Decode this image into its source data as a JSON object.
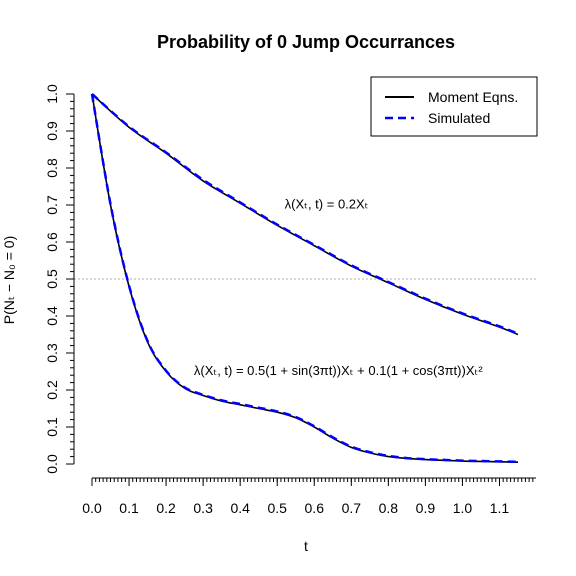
{
  "chart_data": {
    "type": "line",
    "title": "Probability of 0 Jump Occurrances",
    "xlabel": "t",
    "ylabel": "P(Nₜ − N₀ = 0)",
    "xlim": [
      0,
      1.15
    ],
    "ylim": [
      0,
      1.0
    ],
    "x_ticks": [
      "0.0",
      "0.1",
      "0.2",
      "0.3",
      "0.4",
      "0.5",
      "0.6",
      "0.7",
      "0.8",
      "0.9",
      "1.0",
      "1.1"
    ],
    "y_ticks": [
      "0.0",
      "0.1",
      "0.2",
      "0.3",
      "0.4",
      "0.5",
      "0.6",
      "0.7",
      "0.8",
      "0.9",
      "1.0"
    ],
    "reference_line": {
      "y": 0.5,
      "style": "dotted",
      "color": "#b0b0b0"
    },
    "legend": {
      "position": "top-right",
      "entries": [
        {
          "label": "Moment Eqns.",
          "color": "#000000",
          "style": "solid"
        },
        {
          "label": "Simulated",
          "color": "#0000ff",
          "style": "dashed"
        }
      ]
    },
    "series": [
      {
        "name": "Moment Eqns.",
        "color": "#000000",
        "style": "solid",
        "curves": [
          {
            "x": [
              0,
              0.1,
              0.2,
              0.3,
              0.4,
              0.5,
              0.6,
              0.7,
              0.8,
              0.9,
              1.0,
              1.1,
              1.15
            ],
            "y": [
              1.0,
              0.91,
              0.84,
              0.765,
              0.705,
              0.645,
              0.59,
              0.535,
              0.49,
              0.445,
              0.405,
              0.37,
              0.35
            ]
          },
          {
            "x": [
              0,
              0.05,
              0.1,
              0.15,
              0.2,
              0.25,
              0.3,
              0.35,
              0.4,
              0.45,
              0.5,
              0.55,
              0.6,
              0.65,
              0.7,
              0.75,
              0.8,
              0.85,
              0.9,
              0.95,
              1.0,
              1.05,
              1.1,
              1.15
            ],
            "y": [
              1.0,
              0.7,
              0.48,
              0.33,
              0.25,
              0.205,
              0.185,
              0.17,
              0.16,
              0.15,
              0.14,
              0.125,
              0.1,
              0.07,
              0.045,
              0.03,
              0.02,
              0.015,
              0.012,
              0.01,
              0.008,
              0.007,
              0.006,
              0.005
            ]
          }
        ]
      },
      {
        "name": "Simulated",
        "color": "#0000ff",
        "style": "dashed",
        "curves": [
          {
            "x": [
              0,
              0.1,
              0.2,
              0.3,
              0.4,
              0.5,
              0.6,
              0.7,
              0.8,
              0.9,
              1.0,
              1.1,
              1.15
            ],
            "y": [
              1.0,
              0.912,
              0.842,
              0.768,
              0.707,
              0.647,
              0.592,
              0.537,
              0.492,
              0.447,
              0.407,
              0.372,
              0.352
            ]
          },
          {
            "x": [
              0,
              0.05,
              0.1,
              0.15,
              0.2,
              0.25,
              0.3,
              0.35,
              0.4,
              0.45,
              0.5,
              0.55,
              0.6,
              0.65,
              0.7,
              0.75,
              0.8,
              0.85,
              0.9,
              0.95,
              1.0,
              1.05,
              1.1,
              1.15
            ],
            "y": [
              1.0,
              0.702,
              0.482,
              0.332,
              0.252,
              0.207,
              0.187,
              0.172,
              0.162,
              0.152,
              0.142,
              0.127,
              0.102,
              0.072,
              0.047,
              0.032,
              0.022,
              0.016,
              0.013,
              0.011,
              0.009,
              0.008,
              0.007,
              0.006
            ]
          }
        ]
      }
    ],
    "annotations": [
      {
        "text": "λ(Xₜ, t) = 0.2Xₜ",
        "anchor_x": 0.52,
        "anchor_y": 0.69
      },
      {
        "text": "λ(Xₜ, t) = 0.5(1 + sin(3πt))Xₜ + 0.1(1 + cos(3πt))Xₜ²",
        "anchor_x": 0.275,
        "anchor_y": 0.24
      }
    ]
  }
}
